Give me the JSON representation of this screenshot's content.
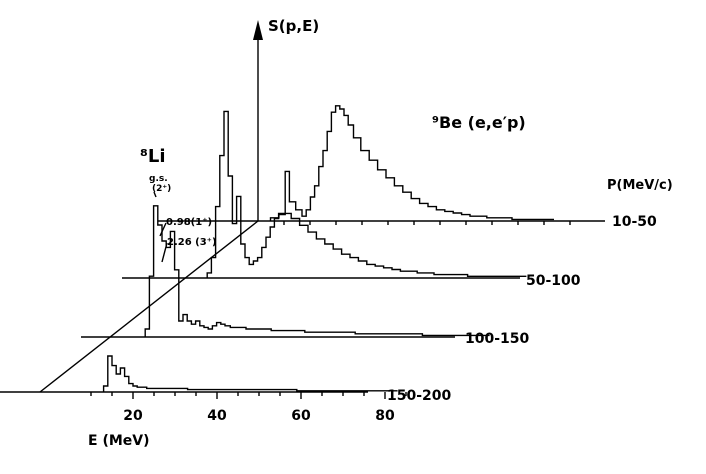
{
  "chart_data": {
    "type": "line",
    "title": "",
    "reaction_label": "⁹Be (e,e′p)",
    "zlabel": "S(p,E)",
    "xlabel": "E (MeV)",
    "x_ticks": [
      20,
      40,
      60,
      80
    ],
    "depth_axis_label": "P(MeV/c)",
    "grid": false,
    "annotations": [
      {
        "text": "⁸Li",
        "target": "100-150"
      },
      {
        "text": "g.s.",
        "target": "100-150"
      },
      {
        "text": "(2⁺)",
        "target": "100-150"
      },
      {
        "text": "0.98(1⁺)",
        "target": "100-150"
      },
      {
        "text": "2.26 (3⁺)",
        "target": "100-150"
      }
    ],
    "series": [
      {
        "name": "10-50",
        "x": [
          13.5,
          15.5,
          16.5,
          17.5,
          19.5,
          20.5,
          21.5,
          22.5,
          23.5,
          24.5,
          25.5,
          26.5,
          27.5,
          28.5,
          29.5,
          30.5,
          31.5,
          33,
          35,
          37,
          39,
          41,
          43,
          45,
          47,
          49,
          51,
          53,
          55,
          57,
          59,
          61,
          63,
          65,
          67,
          69,
          71,
          73,
          75,
          77,
          79
        ],
        "y": [
          0.02,
          0.04,
          0.31,
          0.12,
          0.07,
          0.03,
          0.07,
          0.15,
          0.22,
          0.34,
          0.44,
          0.56,
          0.68,
          0.72,
          0.7,
          0.66,
          0.6,
          0.52,
          0.44,
          0.38,
          0.32,
          0.27,
          0.22,
          0.18,
          0.14,
          0.11,
          0.09,
          0.07,
          0.06,
          0.05,
          0.04,
          0.03,
          0.03,
          0.02,
          0.02,
          0.02,
          0.01,
          0.01,
          0.01,
          0.01,
          0.01
        ]
      },
      {
        "name": "50-100",
        "x": [
          6.5,
          7.5,
          8.5,
          9.5,
          10.5,
          11.5,
          12.5,
          13.5,
          14.5,
          15.5,
          16.5,
          17.5,
          18.5,
          19.5,
          20.5,
          21.5,
          22.5,
          23.5,
          25,
          27,
          29,
          31,
          33,
          35,
          37,
          39,
          41,
          43,
          45,
          47,
          49,
          51,
          53,
          55,
          57,
          59,
          61,
          63,
          65,
          67,
          69,
          71,
          73,
          75,
          77,
          79,
          81
        ],
        "y": [
          0.03,
          0.12,
          0.42,
          0.72,
          0.98,
          0.6,
          0.32,
          0.48,
          0.2,
          0.12,
          0.08,
          0.1,
          0.12,
          0.18,
          0.24,
          0.3,
          0.35,
          0.38,
          0.38,
          0.35,
          0.31,
          0.27,
          0.23,
          0.2,
          0.17,
          0.14,
          0.12,
          0.1,
          0.08,
          0.07,
          0.06,
          0.05,
          0.04,
          0.04,
          0.03,
          0.03,
          0.02,
          0.02,
          0.02,
          0.02,
          0.01,
          0.01,
          0.01,
          0.01,
          0.01,
          0.01,
          0.01
        ]
      },
      {
        "name": "100-150",
        "x": [
          1.5,
          2.5,
          3.5,
          4.5,
          5.5,
          6.5,
          7.5,
          8.5,
          9.5,
          10.5,
          11.5,
          12.5,
          13.5,
          14.5,
          15.5,
          16.5,
          17.5,
          18.5,
          19.5,
          20.5,
          22,
          24,
          26,
          28,
          30,
          32,
          34,
          36,
          38,
          40,
          42,
          44,
          46,
          48,
          50,
          52,
          54,
          56,
          58,
          60,
          62,
          64,
          66,
          68,
          70,
          72,
          74,
          76,
          78,
          80,
          82
        ],
        "y": [
          0.05,
          0.38,
          0.82,
          0.7,
          0.6,
          0.56,
          0.66,
          0.42,
          0.1,
          0.14,
          0.1,
          0.08,
          0.1,
          0.07,
          0.06,
          0.05,
          0.07,
          0.09,
          0.08,
          0.07,
          0.06,
          0.06,
          0.05,
          0.05,
          0.05,
          0.04,
          0.04,
          0.04,
          0.04,
          0.03,
          0.03,
          0.03,
          0.03,
          0.03,
          0.03,
          0.02,
          0.02,
          0.02,
          0.02,
          0.02,
          0.02,
          0.02,
          0.02,
          0.01,
          0.01,
          0.01,
          0.01,
          0.01,
          0.01,
          0.01,
          0.01
        ]
      },
      {
        "name": "150-200",
        "x": [
          13.5,
          14.5,
          15.5,
          16.5,
          17.5,
          18.5,
          19.5,
          20.5,
          21.5,
          22.5,
          24,
          26,
          28,
          30,
          32,
          34,
          36,
          38,
          40,
          42,
          44,
          46,
          48,
          50,
          52,
          54,
          56,
          58,
          60,
          62,
          64,
          66,
          68,
          70,
          72,
          74,
          76,
          78,
          80,
          82
        ],
        "y": [
          0.05,
          0.3,
          0.22,
          0.15,
          0.2,
          0.13,
          0.07,
          0.05,
          0.04,
          0.04,
          0.03,
          0.03,
          0.03,
          0.03,
          0.03,
          0.02,
          0.02,
          0.02,
          0.02,
          0.02,
          0.02,
          0.02,
          0.02,
          0.02,
          0.02,
          0.02,
          0.02,
          0.02,
          0.01,
          0.01,
          0.01,
          0.01,
          0.01,
          0.01,
          0.01,
          0.01,
          0.01,
          0.01,
          0.01,
          0.01
        ]
      }
    ]
  }
}
